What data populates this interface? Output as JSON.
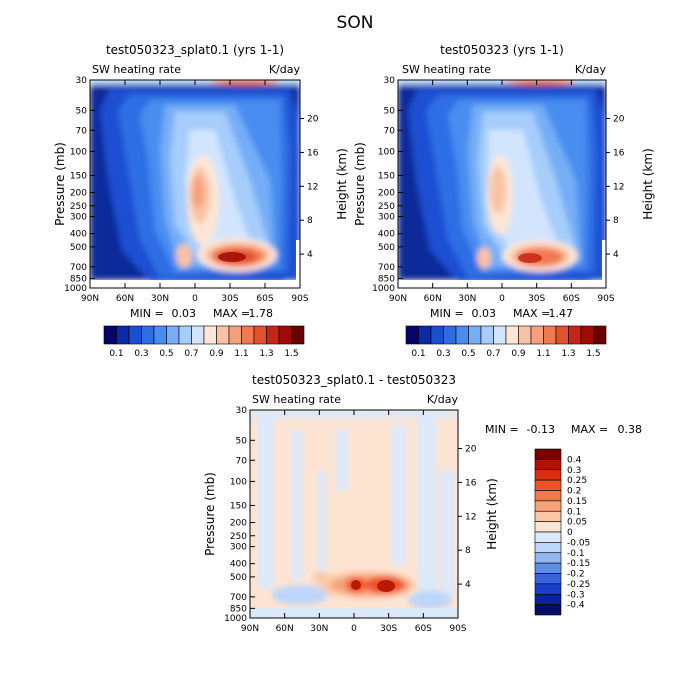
{
  "figure": {
    "title": "SON"
  },
  "chart_data": [
    {
      "type": "heatmap",
      "title": "test050323_splat0.1 (yrs 1-1)",
      "field_label": "SW heating rate",
      "units": "K/day",
      "xlabel": "",
      "ylabel": "Pressure (mb)",
      "y2label": "Height (km)",
      "x_ticks": [
        "90N",
        "60N",
        "30N",
        "0",
        "30S",
        "60S",
        "90S"
      ],
      "y_ticks": [
        "30",
        "50",
        "70",
        "100",
        "150",
        "200",
        "250",
        "300",
        "400",
        "500",
        "700",
        "850",
        "1000"
      ],
      "y2_ticks": [
        "20",
        "16",
        "12",
        "8",
        "4"
      ],
      "ylim": [
        1000,
        30
      ],
      "stats": {
        "min_label": "MIN =",
        "min": "0.03",
        "max_label": "MAX =",
        "max": "1.78"
      },
      "colorbar": {
        "orientation": "horizontal",
        "labels": [
          "0.1",
          "0.3",
          "0.5",
          "0.7",
          "0.9",
          "1.1",
          "1.3",
          "1.5"
        ],
        "colors": [
          "#08046c",
          "#0b2aa6",
          "#1a4fd2",
          "#2e6ee4",
          "#4a8df0",
          "#75aef6",
          "#a6cdfb",
          "#d2e5fd",
          "#fde6d6",
          "#fac2a4",
          "#f6a07b",
          "#f07a52",
          "#e2502e",
          "#c52715",
          "#9e0c05",
          "#6a0000"
        ]
      },
      "features": [
        {
          "name": "upper-stratosphere maximum",
          "lat": 0,
          "pressure": 30,
          "value": 1.2
        },
        {
          "name": "tropical mid-troposphere maximum",
          "lat": 8,
          "pressure": 450,
          "value": 1.0
        },
        {
          "name": "lower-troposphere maximum",
          "lat": -20,
          "pressure": 850,
          "value": 1.78
        },
        {
          "name": "secondary low-level maximum",
          "lat": 20,
          "pressure": 850,
          "value": 1.0
        }
      ]
    },
    {
      "type": "heatmap",
      "title": "test050323 (yrs 1-1)",
      "field_label": "SW heating rate",
      "units": "K/day",
      "xlabel": "",
      "ylabel": "Pressure (mb)",
      "y2label": "Height (km)",
      "x_ticks": [
        "90N",
        "60N",
        "30N",
        "0",
        "30S",
        "60S",
        "90S"
      ],
      "y_ticks": [
        "30",
        "50",
        "70",
        "100",
        "150",
        "200",
        "250",
        "300",
        "400",
        "500",
        "700",
        "850",
        "1000"
      ],
      "y2_ticks": [
        "20",
        "16",
        "12",
        "8",
        "4"
      ],
      "ylim": [
        1000,
        30
      ],
      "stats": {
        "min_label": "MIN =",
        "min": "0.03",
        "max_label": "MAX =",
        "max": "1.47"
      },
      "colorbar": {
        "orientation": "horizontal",
        "labels": [
          "0.1",
          "0.3",
          "0.5",
          "0.7",
          "0.9",
          "1.1",
          "1.3",
          "1.5"
        ],
        "colors": [
          "#08046c",
          "#0b2aa6",
          "#1a4fd2",
          "#2e6ee4",
          "#4a8df0",
          "#75aef6",
          "#a6cdfb",
          "#d2e5fd",
          "#fde6d6",
          "#fac2a4",
          "#f6a07b",
          "#f07a52",
          "#e2502e",
          "#c52715",
          "#9e0c05",
          "#6a0000"
        ]
      },
      "features": [
        {
          "name": "upper-stratosphere maximum",
          "lat": 0,
          "pressure": 30,
          "value": 1.2
        },
        {
          "name": "tropical mid-troposphere maximum",
          "lat": 8,
          "pressure": 450,
          "value": 1.0
        },
        {
          "name": "lower-troposphere maximum",
          "lat": -15,
          "pressure": 850,
          "value": 1.47
        },
        {
          "name": "secondary low-level maximum",
          "lat": 20,
          "pressure": 850,
          "value": 0.9
        }
      ]
    },
    {
      "type": "heatmap",
      "title": "test050323_splat0.1 - test050323",
      "field_label": "SW heating rate",
      "units": "K/day",
      "xlabel": "",
      "ylabel": "Pressure (mb)",
      "y2label": "Height (km)",
      "x_ticks": [
        "90N",
        "60N",
        "30N",
        "0",
        "30S",
        "60S",
        "90S"
      ],
      "y_ticks": [
        "30",
        "50",
        "70",
        "100",
        "150",
        "200",
        "250",
        "300",
        "400",
        "500",
        "700",
        "850",
        "1000"
      ],
      "y2_ticks": [
        "20",
        "16",
        "12",
        "8",
        "4"
      ],
      "ylim": [
        1000,
        30
      ],
      "stats": {
        "min_label": "MIN =",
        "min": "-0.13",
        "max_label": "MAX =",
        "max": "0.38"
      },
      "colorbar": {
        "orientation": "vertical",
        "labels": [
          "0.4",
          "0.3",
          "0.25",
          "0.2",
          "0.15",
          "0.1",
          "0.05",
          "0",
          "-0.05",
          "-0.1",
          "-0.15",
          "-0.2",
          "-0.25",
          "-0.3",
          "-0.4"
        ],
        "colors": [
          "#7a0000",
          "#b01204",
          "#d9300f",
          "#ee5328",
          "#f4784a",
          "#f8a27a",
          "#fbc7a5",
          "#fde4d2",
          "#dbe9fb",
          "#bcd5f8",
          "#93b8f2",
          "#5e8ee8",
          "#3764dc",
          "#1c3fca",
          "#0a22a0",
          "#050f66"
        ]
      },
      "features": [
        {
          "name": "positive difference maximum",
          "lat": -20,
          "pressure": 850,
          "value": 0.38
        },
        {
          "name": "secondary positive difference",
          "lat": 0,
          "pressure": 850,
          "value": 0.3
        },
        {
          "name": "negative difference minimum",
          "lat": 25,
          "pressure": 900,
          "value": -0.13
        }
      ]
    }
  ]
}
